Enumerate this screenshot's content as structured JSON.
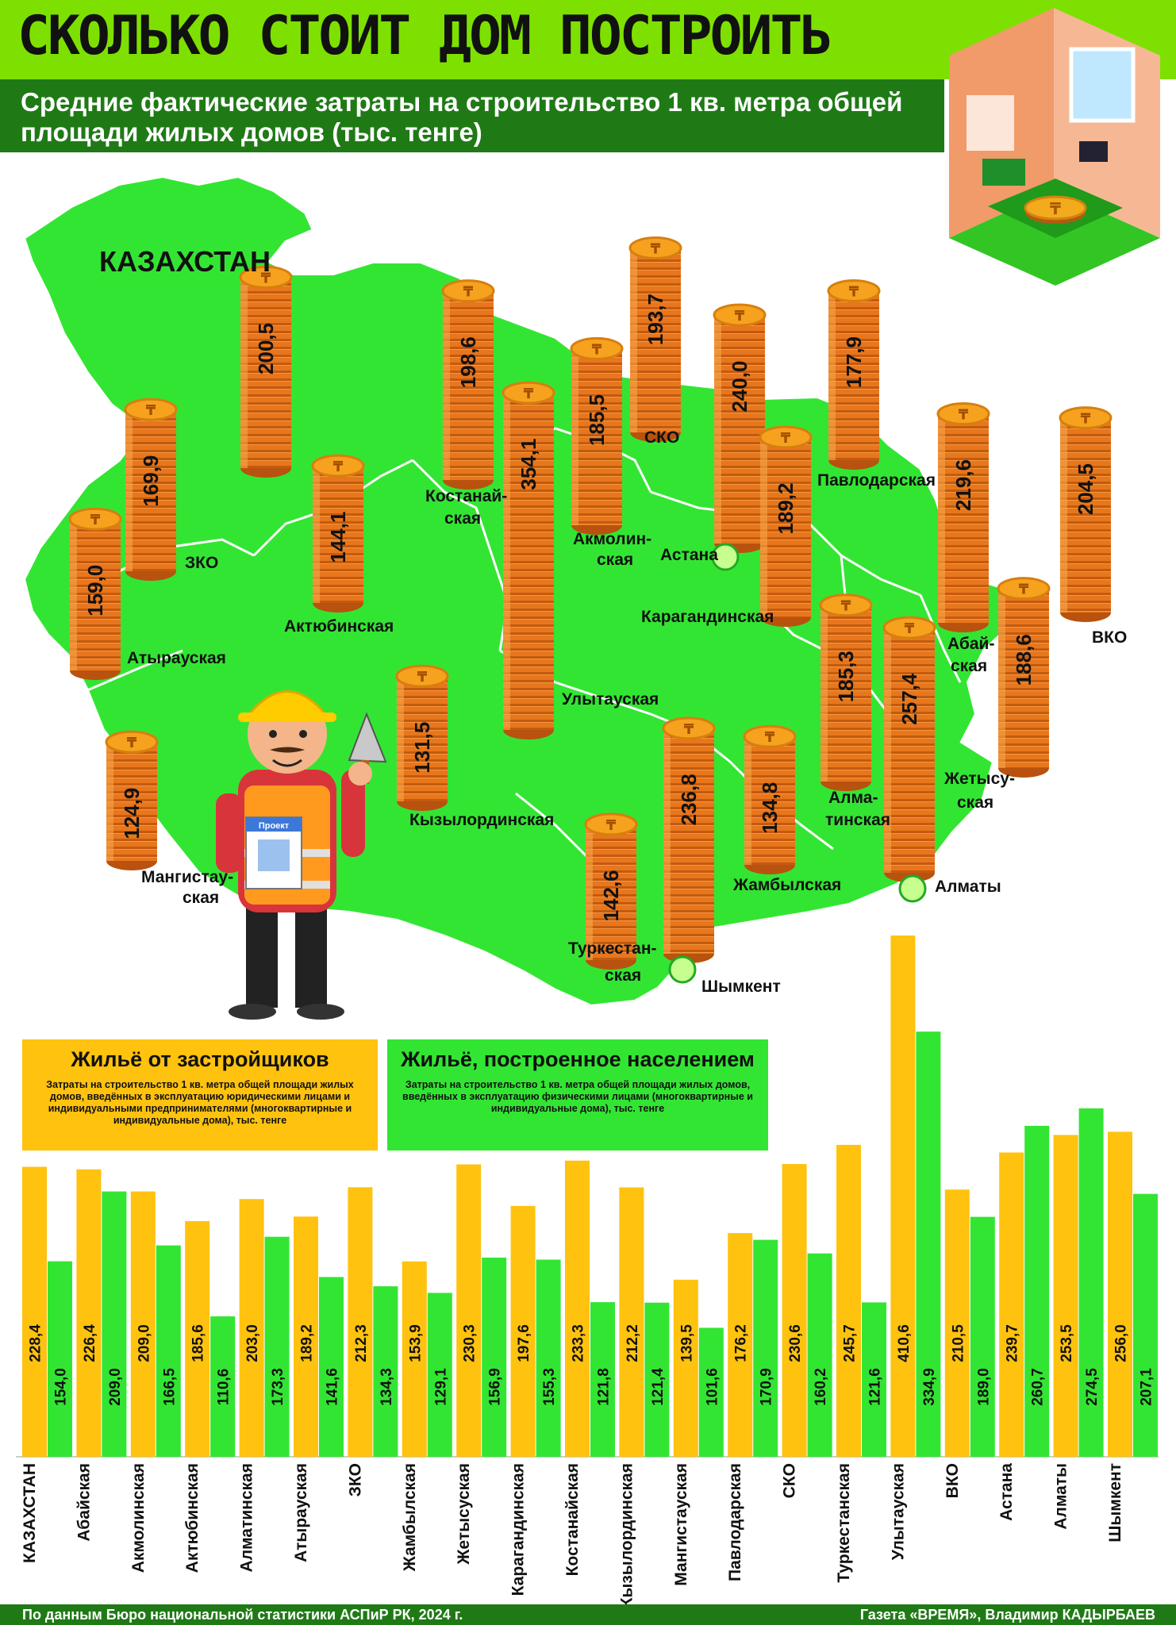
{
  "header": {
    "title": "СКОЛЬКО СТОИТ ДОМ ПОСТРОИТЬ",
    "subtitle": "Средние фактические затраты на строительство 1 кв. метра общей площади жилых домов (тыс. тенге)"
  },
  "map": {
    "country_label": "КАЗАХСТАН",
    "coin_symbol": "₸"
  },
  "legend": {
    "developers_title": "Жильё от застройщиков",
    "developers_text": "Затраты на строительство 1 кв. метра общей площади жилых домов, введённых в эксплуатацию юридическими лицами и индивидуальными предпринимателями (многоквартирные и индивидуальные дома), тыс. тенге",
    "population_title": "Жильё, построенное населением",
    "population_text": "Затраты на строительство 1 кв. метра общей площади жилых домов, введённых в эксплуатацию физическими лицами (многоквартирные и индивидуальные дома), тыс. тенге"
  },
  "footer": {
    "source": "По данным Бюро национальной статистики АСПиР РК, 2024 г.",
    "credit": "Газета «ВРЕМЯ», Владимир КАДЫРБАЕВ"
  },
  "illustration": {
    "clipboard_label": "Проект"
  },
  "colors": {
    "title_green": "#7ee000",
    "dark_green": "#1f7a16",
    "map_green": "#33e533",
    "coin_orange": "#e8761c",
    "bar_yellow": "#ffc20e",
    "bar_green": "#33e533"
  },
  "chart_data": [
    {
      "type": "bar",
      "title": "Средние фактические затраты на строительство 1 кв. метра общей площади жилых домов (тыс. тенге)",
      "points": [
        {
          "label": "КАЗАХСТАН",
          "value": "200,5",
          "n": 200.5
        },
        {
          "label": "ЗКО",
          "value": "169,9",
          "n": 169.9
        },
        {
          "label": "Атырауская",
          "value": "159,0",
          "n": 159.0
        },
        {
          "label": "Мангистау-ская",
          "value": "124,9",
          "n": 124.9
        },
        {
          "label": "Актюбинская",
          "value": "144,1",
          "n": 144.1
        },
        {
          "label": "Кызылординская",
          "value": "131,5",
          "n": 131.5
        },
        {
          "label": "Костанай-ская",
          "value": "198,6",
          "n": 198.6
        },
        {
          "label": "Улытауская",
          "value": "354,1",
          "n": 354.1
        },
        {
          "label": "Акмолин-ская",
          "value": "185,5",
          "n": 185.5
        },
        {
          "label": "СКО",
          "value": "193,7",
          "n": 193.7
        },
        {
          "label": "Астана",
          "value": "240,0",
          "n": 240.0
        },
        {
          "label": "Карагандинская",
          "value": "189,2",
          "n": 189.2
        },
        {
          "label": "Павлодарская",
          "value": "177,9",
          "n": 177.9
        },
        {
          "label": "Туркестан-ская",
          "value": "142,6",
          "n": 142.6
        },
        {
          "label": "Шымкент",
          "value": "236,8",
          "n": 236.8
        },
        {
          "label": "Жамбылская",
          "value": "134,8",
          "n": 134.8
        },
        {
          "label": "Алма-тинская",
          "value": "185,3",
          "n": 185.3
        },
        {
          "label": "Алматы",
          "value": "257,4",
          "n": 257.4
        },
        {
          "label": "Абай-ская",
          "value": "219,6",
          "n": 219.6
        },
        {
          "label": "Жетысу-ская",
          "value": "188,6",
          "n": 188.6
        },
        {
          "label": "ВКО",
          "value": "204,5",
          "n": 204.5
        }
      ]
    },
    {
      "type": "bar",
      "categories": [
        "КАЗАХСТАН",
        "Абайская",
        "Акмолинская",
        "Актюбинская",
        "Алматинская",
        "Атырауская",
        "ЗКО",
        "Жамбылская",
        "Жетысуская",
        "Карагандинская",
        "Костанайская",
        "Кызылординская",
        "Мангистауская",
        "Павлодарская",
        "СКО",
        "Туркестанская",
        "Улытауская",
        "ВКО",
        "Астана",
        "Алматы",
        "Шымкент"
      ],
      "series": [
        {
          "name": "Жильё от застройщиков",
          "color": "#ffc20e",
          "labels": [
            "228,4",
            "226,4",
            "209,0",
            "185,6",
            "203,0",
            "189,2",
            "212,3",
            "153,9",
            "230,3",
            "197,6",
            "233,3",
            "212,2",
            "139,5",
            "176,2",
            "230,6",
            "245,7",
            "410,6",
            "210,5",
            "239,7",
            "253,5",
            "256,0"
          ],
          "values": [
            228.4,
            226.4,
            209.0,
            185.6,
            203.0,
            189.2,
            212.3,
            153.9,
            230.3,
            197.6,
            233.3,
            212.2,
            139.5,
            176.2,
            230.6,
            245.7,
            410.6,
            210.5,
            239.7,
            253.5,
            256.0
          ]
        },
        {
          "name": "Жильё, построенное населением",
          "color": "#33e533",
          "labels": [
            "154,0",
            "209,0",
            "166,5",
            "110,6",
            "173,3",
            "141,6",
            "134,3",
            "129,1",
            "156,9",
            "155,3",
            "121,8",
            "121,4",
            "101,6",
            "170,9",
            "160,2",
            "121,6",
            "334,9",
            "189,0",
            "260,7",
            "274,5",
            "207,1"
          ],
          "values": [
            154.0,
            209.0,
            166.5,
            110.6,
            173.3,
            141.6,
            134.3,
            129.1,
            156.9,
            155.3,
            121.8,
            121.4,
            101.6,
            170.9,
            160.2,
            121.6,
            334.9,
            189.0,
            260.7,
            274.5,
            207.1
          ]
        }
      ]
    }
  ]
}
